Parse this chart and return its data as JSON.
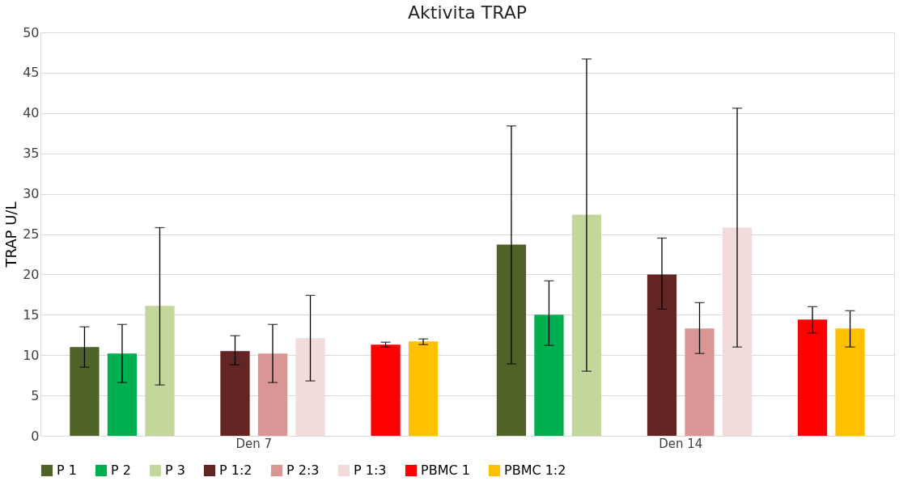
{
  "chart_data": {
    "type": "bar",
    "title": "Aktivita TRAP",
    "ylabel": "TRAP U/L",
    "categories": [
      "Den 7",
      "Den 14"
    ],
    "ylim": [
      0,
      50
    ],
    "yticks": [
      0,
      5,
      10,
      15,
      20,
      25,
      30,
      35,
      40,
      45,
      50
    ],
    "grid": "y",
    "legend": "bottom",
    "series": [
      {
        "name": "P 1",
        "color": "#4f6228",
        "values": [
          11.0,
          23.7
        ],
        "errors": [
          [
            8.5,
            13.5
          ],
          [
            8.9,
            38.4
          ]
        ]
      },
      {
        "name": "P 2",
        "color": "#00b050",
        "values": [
          10.2,
          15.0
        ],
        "errors": [
          [
            6.6,
            13.8
          ],
          [
            11.2,
            19.2
          ]
        ]
      },
      {
        "name": "P 3",
        "color": "#c3d69b",
        "values": [
          16.1,
          27.4
        ],
        "errors": [
          [
            6.3,
            25.8
          ],
          [
            8.0,
            46.7
          ]
        ]
      },
      {
        "name": "P 1:2",
        "color": "#632523",
        "values": [
          10.5,
          20.0
        ],
        "errors": [
          [
            8.8,
            12.4
          ],
          [
            15.7,
            24.5
          ]
        ]
      },
      {
        "name": "P 2:3",
        "color": "#d99694",
        "values": [
          10.2,
          13.3
        ],
        "errors": [
          [
            6.6,
            13.8
          ],
          [
            10.2,
            16.5
          ]
        ]
      },
      {
        "name": "P 1:3",
        "color": "#f2dcdb",
        "values": [
          12.1,
          25.8
        ],
        "errors": [
          [
            6.8,
            17.4
          ],
          [
            11.0,
            40.6
          ]
        ]
      },
      {
        "name": "PBMC 1",
        "color": "#ff0000",
        "values": [
          11.3,
          14.4
        ],
        "errors": [
          [
            11.0,
            11.6
          ],
          [
            12.75,
            16.0
          ]
        ]
      },
      {
        "name": "PBMC 1:2",
        "color": "#ffc000",
        "values": [
          11.7,
          13.3
        ],
        "errors": [
          [
            11.3,
            12.0
          ],
          [
            11.0,
            15.5
          ]
        ]
      }
    ]
  }
}
